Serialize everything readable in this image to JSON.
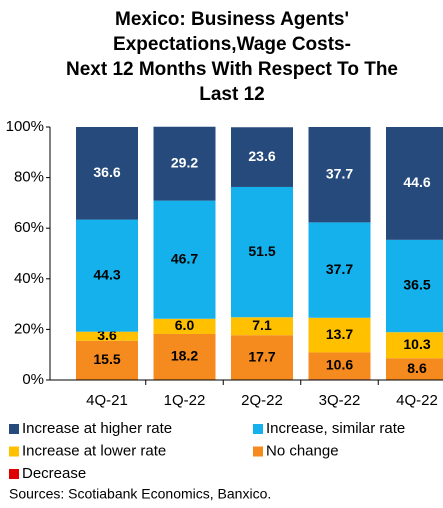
{
  "chart_data": {
    "type": "stacked_bar",
    "title": [
      "Mexico: Business Agents'",
      "Expectations,Wage Costs-",
      "Next 12 Months With Respect To The",
      "Last 12"
    ],
    "categories": [
      "4Q-21",
      "1Q-22",
      "2Q-22",
      "3Q-22",
      "4Q-22"
    ],
    "series": [
      {
        "name": "Decrease",
        "color": "#e00000",
        "values": [
          0,
          0,
          0,
          0.3,
          0
        ]
      },
      {
        "name": "No change",
        "color": "#f58a1f",
        "label_color": "#000000",
        "values": [
          15.5,
          18.2,
          17.7,
          10.6,
          8.6
        ],
        "value_labels": [
          "15.5",
          "18.2",
          "17.7",
          "10.6",
          "8.6"
        ]
      },
      {
        "name": "Increase at lower rate",
        "color": "#ffc000",
        "label_color": "#000000",
        "values": [
          3.6,
          6,
          7.1,
          13.7,
          10.3
        ],
        "value_labels": [
          "3.6",
          "6.0",
          "7.1",
          "13.7",
          "10.3"
        ]
      },
      {
        "name": "Increase, similar rate",
        "color": "#14b1ec",
        "label_color": "#000000",
        "values": [
          44.3,
          46.7,
          51.5,
          37.7,
          36.5
        ],
        "value_labels": [
          "44.3",
          "46.7",
          "51.5",
          "37.7",
          "36.5"
        ]
      },
      {
        "name": "Increase at higher rate",
        "color": "#264a7c",
        "label_color": "#ffffff",
        "values": [
          36.6,
          29.2,
          23.6,
          37.7,
          44.6
        ],
        "value_labels": [
          "36.6",
          "29.2",
          "23.6",
          "37.7",
          "44.6"
        ]
      }
    ],
    "legend_order": [
      4,
      3,
      2,
      1,
      0
    ],
    "ylim": [
      0,
      100
    ],
    "yticks": [
      {
        "value": 0,
        "label": "0%"
      },
      {
        "value": 20,
        "label": "20%"
      },
      {
        "value": 40,
        "label": "40%"
      },
      {
        "value": 60,
        "label": "60%"
      },
      {
        "value": 80,
        "label": "80%"
      },
      {
        "value": 100,
        "label": "100%"
      }
    ],
    "source": "Sources: Scotiabank Economics, Banxico."
  }
}
